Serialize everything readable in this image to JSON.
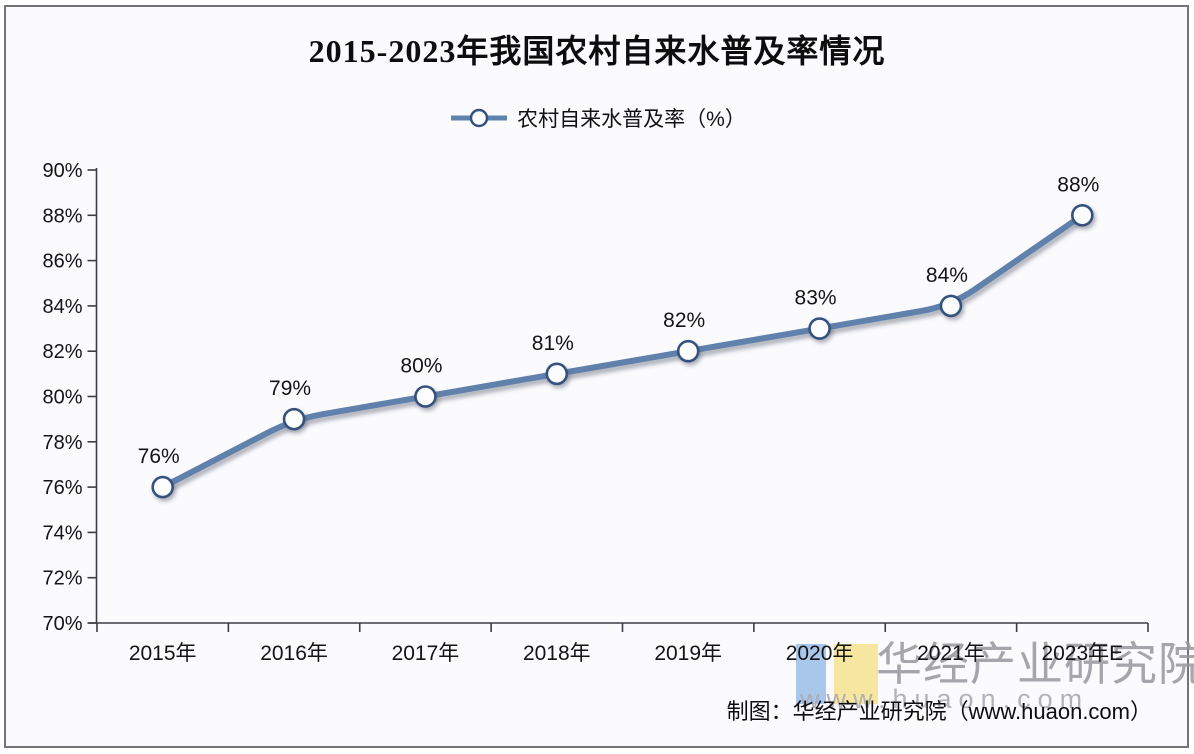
{
  "chart_data": {
    "type": "line",
    "title": "2015-2023年我国农村自来水普及率情况",
    "legend_label": "农村自来水普及率（%）",
    "legend_position": "top-center",
    "categories": [
      "2015年",
      "2016年",
      "2017年",
      "2018年",
      "2019年",
      "2020年",
      "2021年",
      "2023年E"
    ],
    "series": [
      {
        "name": "农村自来水普及率",
        "values": [
          76,
          79,
          80,
          81,
          82,
          83,
          84,
          88
        ]
      }
    ],
    "point_labels": [
      "76%",
      "79%",
      "80%",
      "81%",
      "82%",
      "83%",
      "84%",
      "88%"
    ],
    "y_tick_labels": [
      "70%",
      "72%",
      "74%",
      "76%",
      "78%",
      "80%",
      "82%",
      "84%",
      "86%",
      "88%",
      "90%"
    ],
    "ylim": [
      70,
      90
    ],
    "y_step": 2,
    "grid": "off",
    "colors": {
      "line": "#5F81AC",
      "marker_fill": "#FBFDFF",
      "marker_stroke": "#35527E",
      "axis": "#3C3C44",
      "text": "#141414",
      "shadow": "rgba(95,100,115,0.5)"
    }
  },
  "caption": "制图：华经产业研究院（www.huaon.com）",
  "watermark": {
    "brand": "华经产业研究院",
    "url": "www.huaon.com",
    "bar_blue": "#A9C7EB",
    "bar_yellow": "#F6E6A0"
  }
}
